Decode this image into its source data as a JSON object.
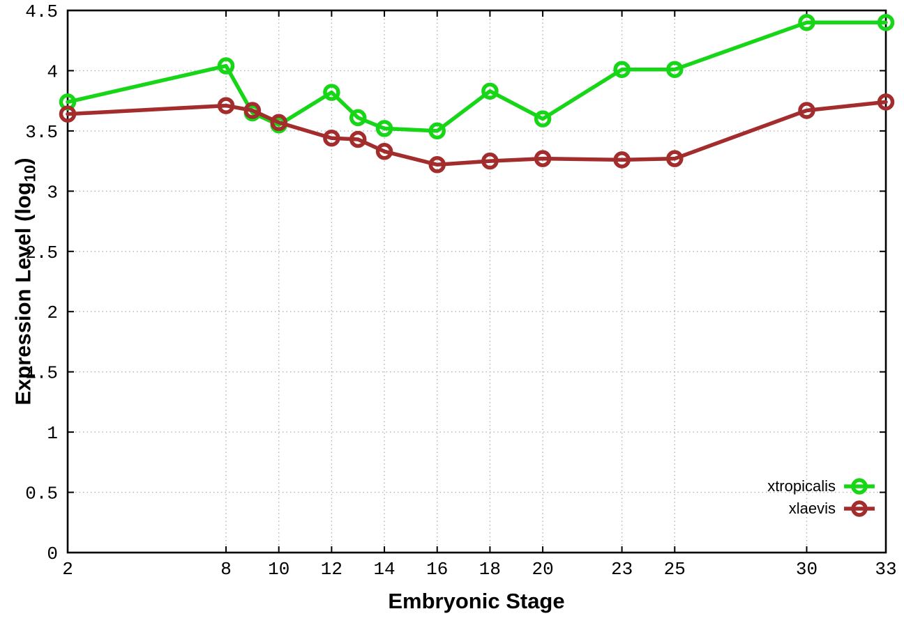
{
  "figure": {
    "background": "#ffffff",
    "grid_color": "#b3b3b3",
    "border_color": "#000000"
  },
  "chart_data": {
    "type": "line",
    "title": "",
    "xlabel": "Embryonic Stage",
    "ylabel": "Expression Level (log10)",
    "ylabel_parts": {
      "main": "Expression Level (log",
      "sub": "10",
      "close": ")"
    },
    "xlim": [
      2,
      33
    ],
    "ylim": [
      0,
      4.5
    ],
    "grid": true,
    "legend_position": "bottom-right-inside",
    "x": [
      2,
      8,
      9,
      10,
      12,
      13,
      14,
      16,
      18,
      20,
      23,
      25,
      30,
      33
    ],
    "x_tick_labels": [
      "2",
      "8",
      "10",
      "12",
      "14",
      "16",
      "18",
      "20",
      "23",
      "25",
      "30",
      "33"
    ],
    "y_tick_labels": [
      "0",
      "0.5",
      "1",
      "1.5",
      "2",
      "2.5",
      "3",
      "3.5",
      "4",
      "4.5"
    ],
    "series": [
      {
        "name": "xtropicalis",
        "color": "#17d517",
        "marker": "open-circle",
        "values": [
          3.74,
          4.04,
          3.65,
          3.55,
          3.82,
          3.61,
          3.52,
          3.5,
          3.83,
          3.6,
          4.01,
          4.01,
          4.4,
          4.4
        ]
      },
      {
        "name": "xlaevis",
        "color": "#a32c2c",
        "marker": "open-circle",
        "values": [
          3.64,
          3.71,
          3.67,
          3.57,
          3.44,
          3.43,
          3.33,
          3.22,
          3.25,
          3.27,
          3.26,
          3.27,
          3.67,
          3.74
        ]
      }
    ]
  }
}
